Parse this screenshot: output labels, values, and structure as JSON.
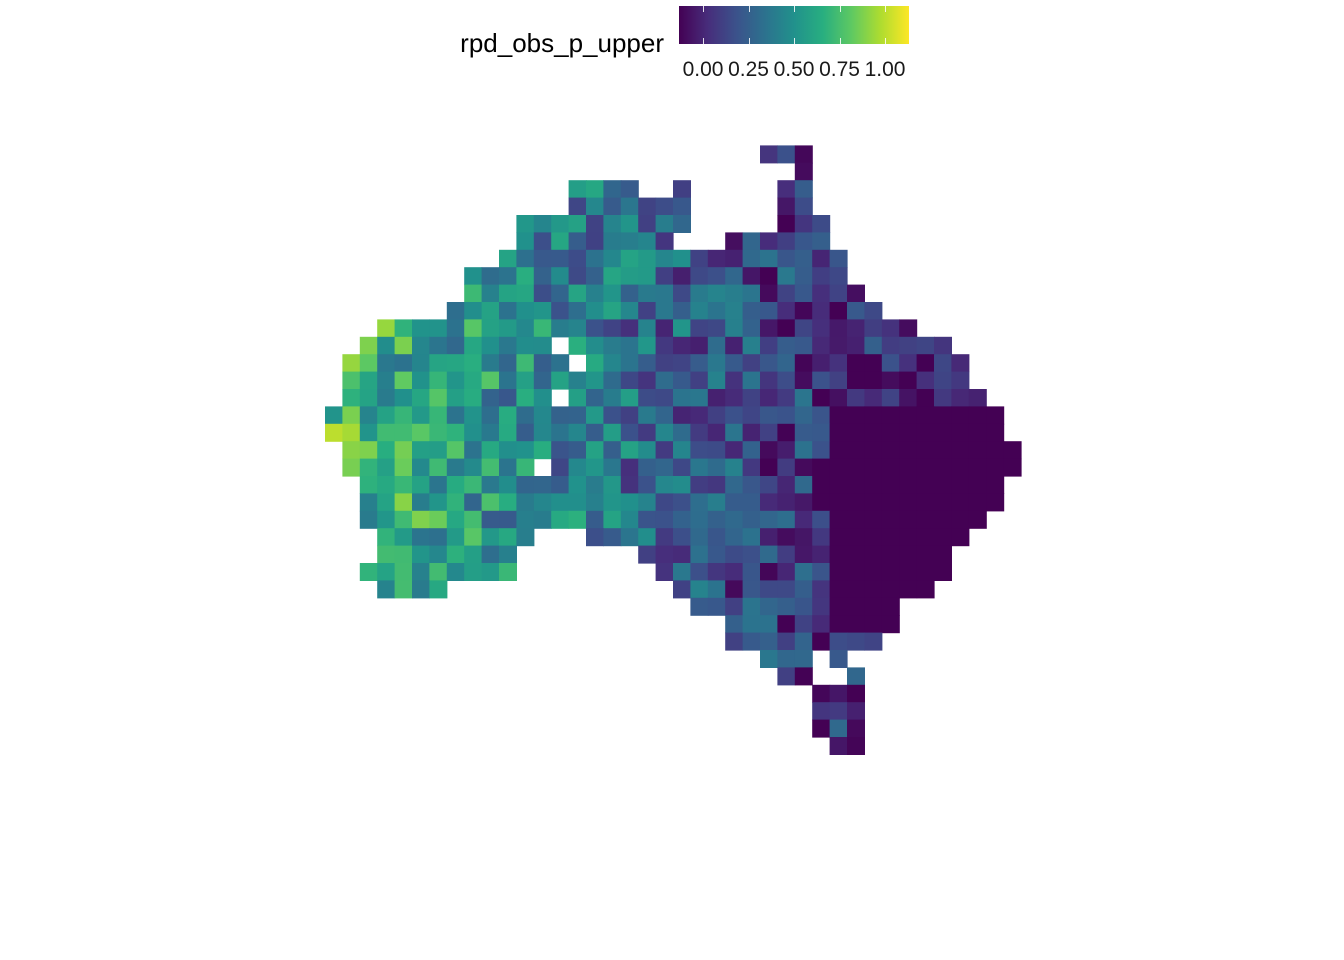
{
  "legend": {
    "title": "rpd_obs_p_upper",
    "ticks": [
      {
        "value": 0.0,
        "label": "0.00"
      },
      {
        "value": 0.25,
        "label": "0.25"
      },
      {
        "value": 0.5,
        "label": "0.50"
      },
      {
        "value": 0.75,
        "label": "0.75"
      },
      {
        "value": 1.0,
        "label": "1.00"
      }
    ],
    "range": [
      0,
      1
    ],
    "palette": [
      "#440154",
      "#3b528b",
      "#21918c",
      "#5ec962",
      "#fde725"
    ]
  },
  "map": {
    "region": "Australia",
    "grid": [
      "..............................                  ",
      "..............................XXX               ",
      "................................X.              ",
      "...................XXXX..X.....XX               ",
      "...................XXXXXXX.....XX               ",
      "................XXXXXXXXXX.....XXX              ",
      "................XXXXXXXXX...XXXXXX              ",
      "...............XXXXXXXXXXXXXXXXXXXX             ",
      ".............XXXXXXXXXXXXXXXXXXXXXX             ",
      ".............XXXXXXXXXXXXXXXXXXXXXXX            ",
      "............XXXXXXXXXXXXXXXXXXXXXXXXX           ",
      "........XXXXXXXXXXXXXXXXXXXXXXXXXXXXXXX         ",
      ".......XXXXXXXXXXX.XXXXXXXXXXXXXXXXXXXXXX       ",
      "......XXXXXXXXXXXXX.XXXXXXXXXXXXXXXXXXXXXX      ",
      "......XXXXXXXXXXXXXXXXXXXXXXXXXXXXXXXXXXXX      ",
      "......XXXXXXXXXXXX.XXXXXXXXXXXXXXXXXXXXXXXX     ",
      ".....XXXXXXXXXXXXXXXXXXXXXXXXXXXXXXXXXXXXXXX    ",
      ".....XXXXXXXXXXXXXXXXXXXXXXXXXXXXXXXXXXXXXXX    ",
      "......XXXXXXXXXXXXXXXXXXXXXXXXXXXXXXXXXXXXXXX   ",
      "......XXXXXXXXXXX.XXXXXXXXXXXXXXXXXXXXXXXXXXX   ",
      ".......XXXXXXXXXXXXXXXXXXXXXXXXXXXXXXXXXXXXX    ",
      ".......XXXXXXXXXXXXXXXXXXXXXXXXXXXXXXXXXXXXX    ",
      ".......XXXXXXXXXXXXXXXXXXXXXXXXXXXXXXXXXXXX     ",
      "........XXXXXXXXX...XXXXXXXXXXXXXXXXXXXXXX      ",
      "........XXXXXXXX.......XXXXXXXXXXXXXXXXXX       ",
      ".......XXXXXXXXX........XXXXXXXXXXXXXXXXX       ",
      "........XXXX.............XXXXXXXXXXXXXXX        ",
      "..........................XXXXXXXXXXXX          ",
      "............................XXXXXXXXXX          ",
      "............................XXXXXXXXX           ",
      "..............................XXX.X.            ",
      "...............................XX..X            ",
      ".................................XXX            ",
      ".................................XXX            ",
      ".................................XXX            ",
      "..................................XX            "
    ],
    "origin_value_note": ""
  }
}
